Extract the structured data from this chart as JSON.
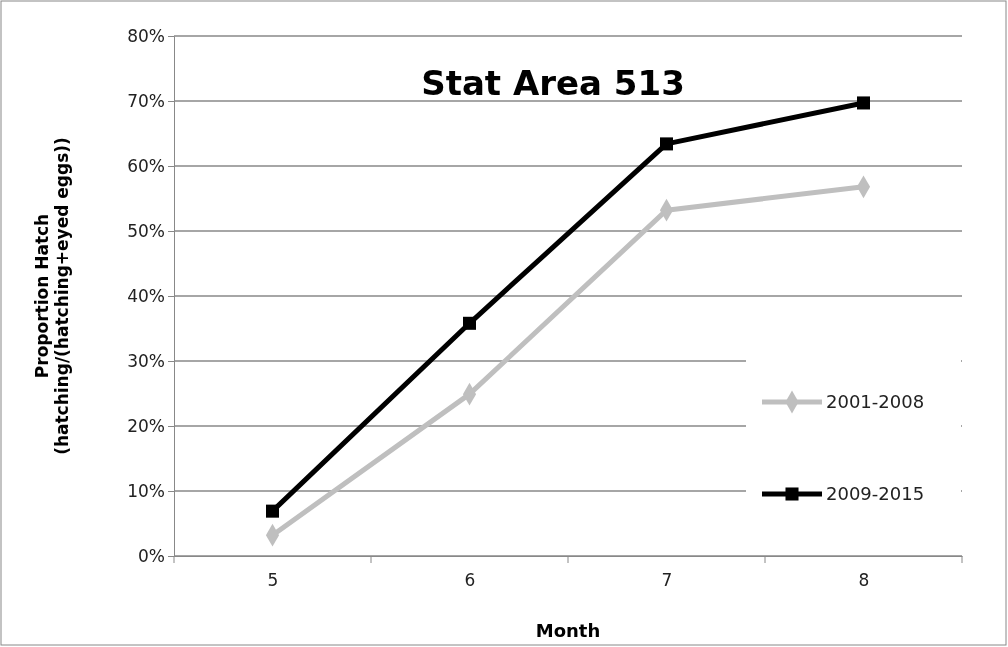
{
  "chart_data": {
    "type": "line",
    "title": "Stat Area 513",
    "xlabel": "Month",
    "ylabel": "Proportion Hatch\n(hatching/(hatching+eyed  eggs))",
    "categories": [
      "5",
      "6",
      "7",
      "8"
    ],
    "series": [
      {
        "name": "2001-2008",
        "color": "#bfbfbf",
        "marker": "diamond",
        "values": [
          3.2,
          24.9,
          53.2,
          56.8
        ]
      },
      {
        "name": "2009-2015",
        "color": "#000000",
        "marker": "square",
        "values": [
          6.9,
          35.8,
          63.4,
          69.7
        ]
      }
    ],
    "ylim": [
      0,
      80
    ],
    "yticks": [
      {
        "value": 0,
        "label": "0%"
      },
      {
        "value": 10,
        "label": "10%"
      },
      {
        "value": 20,
        "label": "20%"
      },
      {
        "value": 30,
        "label": "30%"
      },
      {
        "value": 40,
        "label": "40%"
      },
      {
        "value": 50,
        "label": "50%"
      },
      {
        "value": 60,
        "label": "60%"
      },
      {
        "value": 70,
        "label": "70%"
      },
      {
        "value": 80,
        "label": "80%"
      }
    ],
    "grid": "y",
    "legend": "right",
    "line_style": "solid"
  }
}
